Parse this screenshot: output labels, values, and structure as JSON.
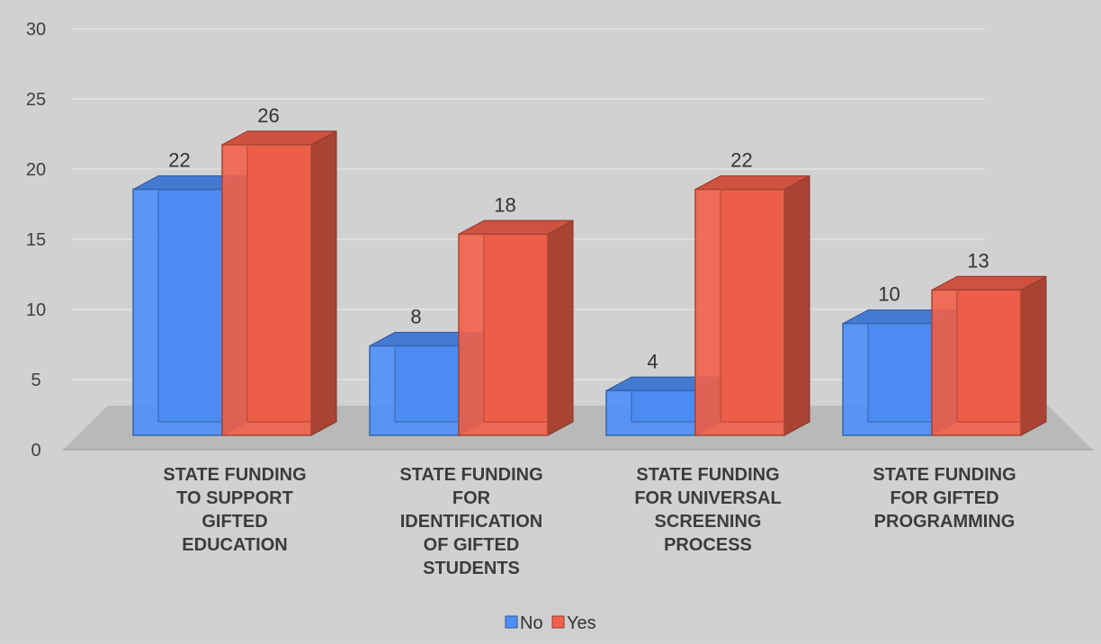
{
  "chart_data": {
    "type": "bar",
    "categories": [
      [
        "STATE FUNDING",
        "TO SUPPORT",
        "GIFTED",
        "EDUCATION"
      ],
      [
        "STATE FUNDING",
        "FOR",
        "IDENTIFICATION",
        "OF GIFTED",
        "STUDENTS"
      ],
      [
        "STATE FUNDING",
        "FOR UNIVERSAL",
        "SCREENING",
        "PROCESS"
      ],
      [
        "STATE FUNDING",
        "FOR GIFTED",
        "PROGRAMMING"
      ]
    ],
    "series": [
      {
        "name": "No",
        "values": [
          22,
          8,
          4,
          10
        ],
        "color": "#4f8ff7"
      },
      {
        "name": "Yes",
        "values": [
          26,
          18,
          22,
          13
        ],
        "color": "#f2614a"
      }
    ],
    "ylim": [
      0,
      30
    ],
    "yticks": [
      "0",
      "5",
      "10",
      "15",
      "20",
      "25",
      "30"
    ],
    "grid": true,
    "legend": "bottom",
    "style": "3d-bar"
  }
}
